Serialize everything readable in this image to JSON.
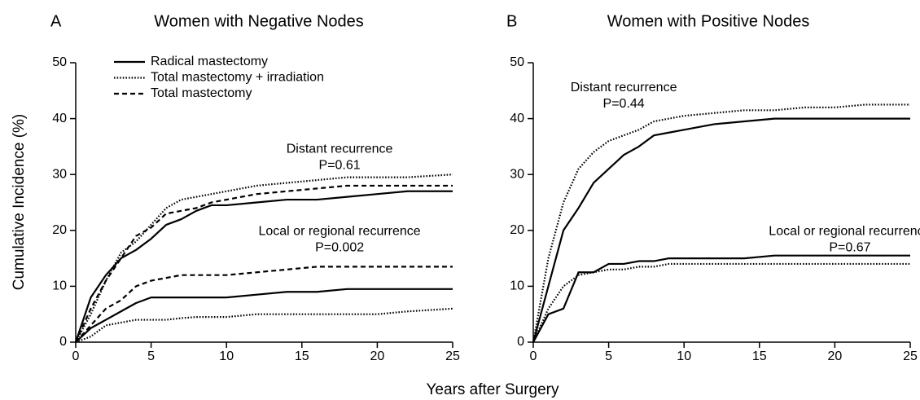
{
  "chart_data": [
    {
      "type": "line",
      "panel": "A",
      "title": "Women with Negative Nodes",
      "ylabel": "Cumulative Incidence (%)",
      "xlabel": "Years after Surgery",
      "xlim": [
        0,
        25
      ],
      "ylim": [
        0,
        50
      ],
      "xticks": [
        0,
        5,
        10,
        15,
        20,
        25
      ],
      "yticks": [
        0,
        10,
        20,
        30,
        40,
        50
      ],
      "color": "#000000",
      "legend": [
        {
          "name": "Radical mastectomy",
          "style": "solid"
        },
        {
          "name": "Total mastectomy + irradiation",
          "style": "dotted"
        },
        {
          "name": "Total mastectomy",
          "style": "dashed"
        }
      ],
      "x": [
        0,
        1,
        2,
        3,
        4,
        5,
        6,
        7,
        8,
        9,
        10,
        12,
        14,
        16,
        18,
        20,
        22,
        25
      ],
      "groups": [
        {
          "label": "Distant recurrence",
          "p_value": "P=0.61",
          "series": [
            {
              "style": "solid",
              "values": [
                0,
                8,
                12,
                15,
                16.5,
                18.5,
                21,
                22,
                23.5,
                24.5,
                24.5,
                25,
                25.5,
                25.5,
                26,
                26.5,
                27,
                27
              ]
            },
            {
              "style": "dotted",
              "values": [
                0,
                5,
                11,
                16,
                18,
                21,
                24,
                25.5,
                26,
                26.5,
                27,
                28,
                28.5,
                29,
                29.5,
                29.5,
                29.5,
                30
              ]
            },
            {
              "style": "dashed",
              "values": [
                0,
                6,
                11,
                15,
                19,
                20.5,
                23,
                23.5,
                24,
                25,
                25.5,
                26.5,
                27,
                27.5,
                28,
                28,
                28,
                28
              ]
            }
          ]
        },
        {
          "label": "Local or regional recurrence",
          "p_value": "P=0.002",
          "series": [
            {
              "style": "solid",
              "values": [
                0,
                2.5,
                4,
                5.5,
                7,
                8,
                8,
                8,
                8,
                8,
                8,
                8.5,
                9,
                9,
                9.5,
                9.5,
                9.5,
                9.5
              ]
            },
            {
              "style": "dotted",
              "values": [
                0,
                1,
                3,
                3.5,
                4,
                4,
                4,
                4.3,
                4.5,
                4.5,
                4.5,
                5,
                5,
                5,
                5,
                5,
                5.5,
                6
              ]
            },
            {
              "style": "dashed",
              "values": [
                0,
                3,
                6,
                7.5,
                10,
                11,
                11.5,
                12,
                12,
                12,
                12,
                12.5,
                13,
                13.5,
                13.5,
                13.5,
                13.5,
                13.5
              ]
            }
          ]
        }
      ]
    },
    {
      "type": "line",
      "panel": "B",
      "title": "Women with Positive Nodes",
      "xlim": [
        0,
        25
      ],
      "ylim": [
        0,
        50
      ],
      "xticks": [
        0,
        5,
        10,
        15,
        20,
        25
      ],
      "yticks": [
        0,
        10,
        20,
        30,
        40,
        50
      ],
      "color": "#000000",
      "x": [
        0,
        1,
        2,
        3,
        4,
        5,
        6,
        7,
        8,
        9,
        10,
        12,
        14,
        16,
        18,
        20,
        22,
        25
      ],
      "groups": [
        {
          "label": "Distant recurrence",
          "p_value": "P=0.44",
          "series": [
            {
              "style": "solid",
              "values": [
                0,
                10,
                20,
                24,
                28.5,
                31,
                33.5,
                35,
                37,
                37.5,
                38,
                39,
                39.5,
                40,
                40,
                40,
                40,
                40
              ]
            },
            {
              "style": "dotted",
              "values": [
                0,
                15,
                25,
                31,
                34,
                36,
                37,
                38,
                39.5,
                40,
                40.5,
                41,
                41.5,
                41.5,
                42,
                42,
                42.5,
                42.5
              ]
            }
          ]
        },
        {
          "label": "Local or regional recurrence",
          "p_value": "P=0.67",
          "series": [
            {
              "style": "solid",
              "values": [
                0,
                5,
                6,
                12.5,
                12.5,
                14,
                14,
                14.5,
                14.5,
                15,
                15,
                15,
                15,
                15.5,
                15.5,
                15.5,
                15.5,
                15.5
              ]
            },
            {
              "style": "dotted",
              "values": [
                0,
                6,
                10,
                12,
                12.5,
                13,
                13,
                13.5,
                13.5,
                14,
                14,
                14,
                14,
                14,
                14,
                14,
                14,
                14
              ]
            }
          ]
        }
      ]
    }
  ]
}
